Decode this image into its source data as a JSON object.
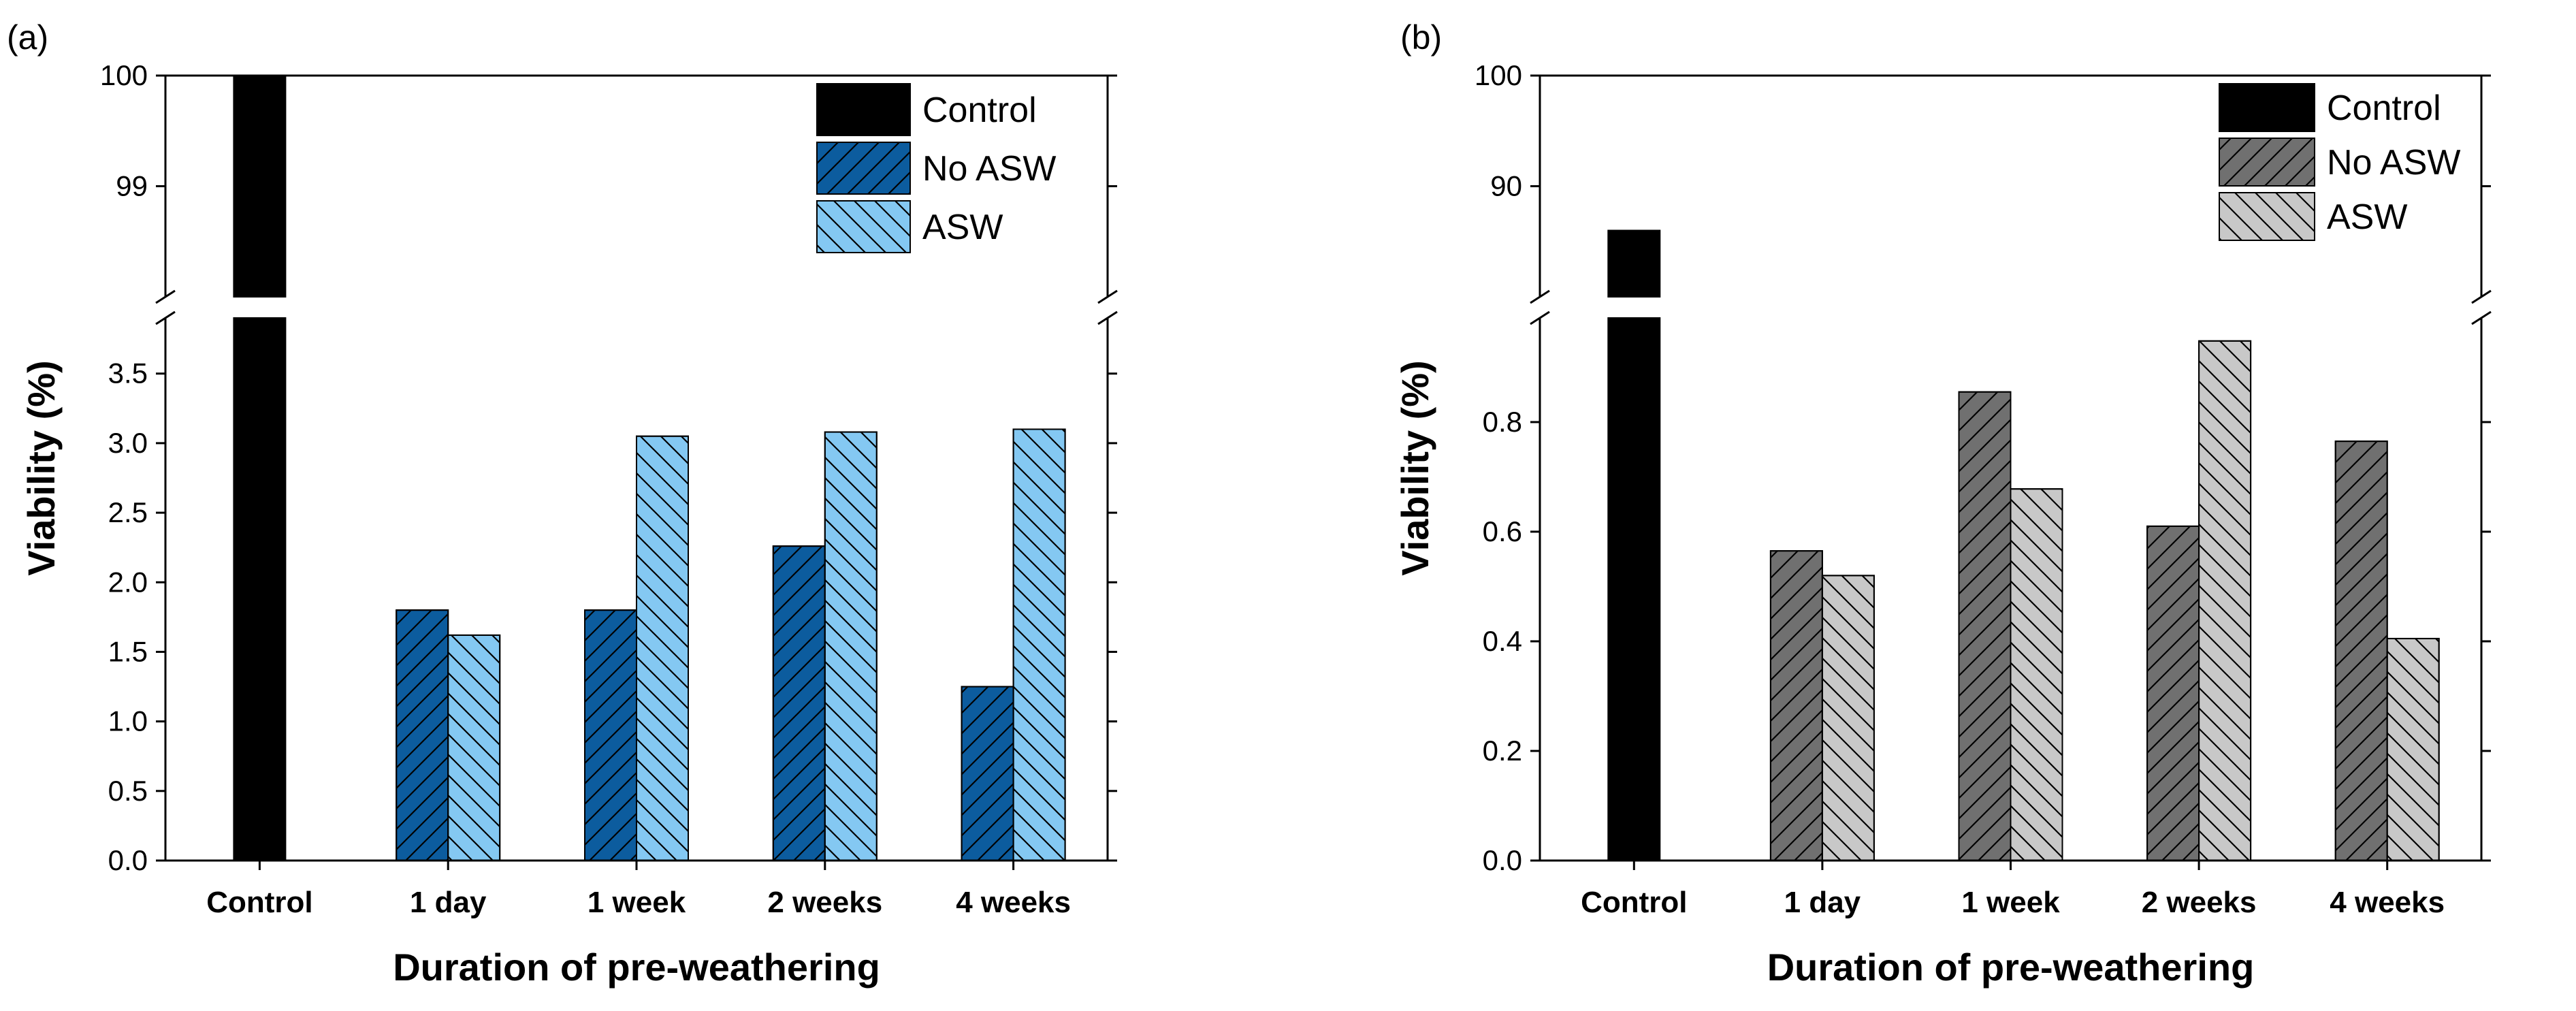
{
  "chart_data": [
    {
      "panel_label": "(a)",
      "type": "bar",
      "xlabel": "Duration of pre-weathering",
      "ylabel": "Viability (%)",
      "categories": [
        "Control",
        "1 day",
        "1 week",
        "2 weeks",
        "4 weeks"
      ],
      "series": [
        {
          "name": "Control",
          "values": [
            100,
            null,
            null,
            null,
            null
          ],
          "color": "#000000",
          "hatch": "none"
        },
        {
          "name": "No ASW",
          "values": [
            null,
            1.8,
            1.8,
            2.26,
            1.25
          ],
          "color": "#0c5c9e",
          "hatch": "forward-diagonal"
        },
        {
          "name": "ASW",
          "values": [
            null,
            1.62,
            3.05,
            3.08,
            3.1
          ],
          "color": "#84c8f2",
          "hatch": "back-diagonal"
        }
      ],
      "y_axis_break": true,
      "y_lower": {
        "range": [
          0,
          3.9
        ],
        "ticks": [
          0.0,
          0.5,
          1.0,
          1.5,
          2.0,
          2.5,
          3.0,
          3.5
        ],
        "tick_labels": [
          "0.0",
          "0.5",
          "1.0",
          "1.5",
          "2.0",
          "2.5",
          "3.0",
          "3.5"
        ]
      },
      "y_upper": {
        "range": [
          98,
          100
        ],
        "ticks": [
          99,
          100
        ],
        "tick_labels": [
          "99",
          "100"
        ]
      },
      "legend": {
        "position": "top-right",
        "entries": [
          "Control",
          "No ASW",
          "ASW"
        ]
      }
    },
    {
      "panel_label": "(b)",
      "type": "bar",
      "xlabel": "Duration of pre-weathering",
      "ylabel": "Viability (%)",
      "categories": [
        "Control",
        "1 day",
        "1 week",
        "2 weeks",
        "4 weeks"
      ],
      "series": [
        {
          "name": "Control",
          "values": [
            86,
            null,
            null,
            null,
            null
          ],
          "color": "#000000",
          "hatch": "none"
        },
        {
          "name": "No ASW",
          "values": [
            null,
            0.565,
            0.855,
            0.61,
            0.765
          ],
          "color": "#707070",
          "hatch": "forward-diagonal"
        },
        {
          "name": "ASW",
          "values": [
            null,
            0.52,
            0.678,
            0.948,
            0.405
          ],
          "color": "#c8c8c8",
          "hatch": "back-diagonal"
        }
      ],
      "y_axis_break": true,
      "y_lower": {
        "range": [
          0,
          0.99
        ],
        "ticks": [
          0.0,
          0.2,
          0.4,
          0.6,
          0.8
        ],
        "tick_labels": [
          "0.0",
          "0.2",
          "0.4",
          "0.6",
          "0.8"
        ]
      },
      "y_upper": {
        "range": [
          80,
          100
        ],
        "ticks": [
          90,
          100
        ],
        "tick_labels": [
          "90",
          "100"
        ]
      },
      "legend": {
        "position": "top-right",
        "entries": [
          "Control",
          "No ASW",
          "ASW"
        ]
      }
    }
  ]
}
